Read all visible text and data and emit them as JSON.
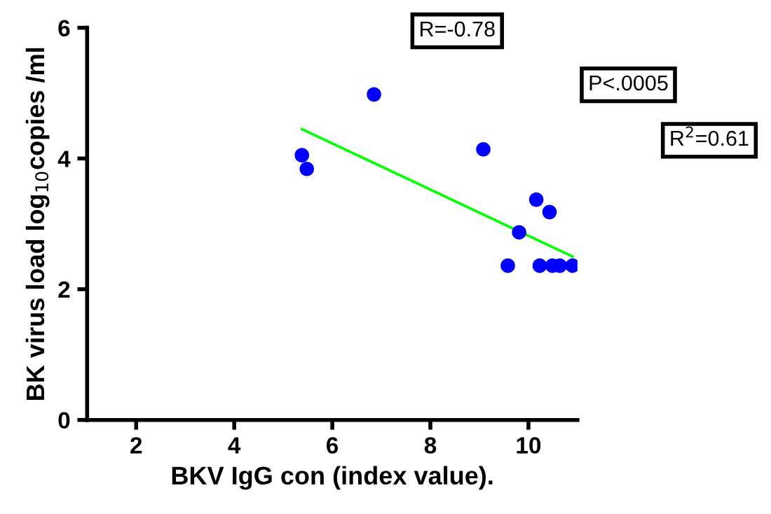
{
  "chart_data": {
    "type": "scatter",
    "xlabel": "BKV IgG con (index value).",
    "ylabel": "BK virus load log$_{10}$copies /ml",
    "xlim": [
      1,
      11
    ],
    "xticks": [
      2,
      4,
      6,
      8,
      10
    ],
    "ylim": [
      0,
      6
    ],
    "yticks": [
      0,
      2,
      4,
      6
    ],
    "grid": false,
    "series": [
      {
        "marker": "circle",
        "color": "#0000ff",
        "x": [
          5.38,
          5.48,
          6.85,
          9.08,
          10.16,
          10.43,
          9.81,
          9.58,
          10.23,
          10.49,
          10.64,
          10.9
        ],
        "values": [
          4.05,
          3.84,
          4.98,
          4.14,
          3.37,
          3.18,
          2.87,
          2.36,
          2.36,
          2.36,
          2.36,
          2.36
        ]
      },
      {
        "type": "line",
        "marker": "none",
        "color": "#00ff00",
        "x": [
          5.38,
          10.9
        ],
        "values": [
          4.45,
          2.5
        ]
      }
    ],
    "annotations": [
      "R=-0.78",
      "P<.0005",
      "R$^{2}$=0.61"
    ]
  }
}
